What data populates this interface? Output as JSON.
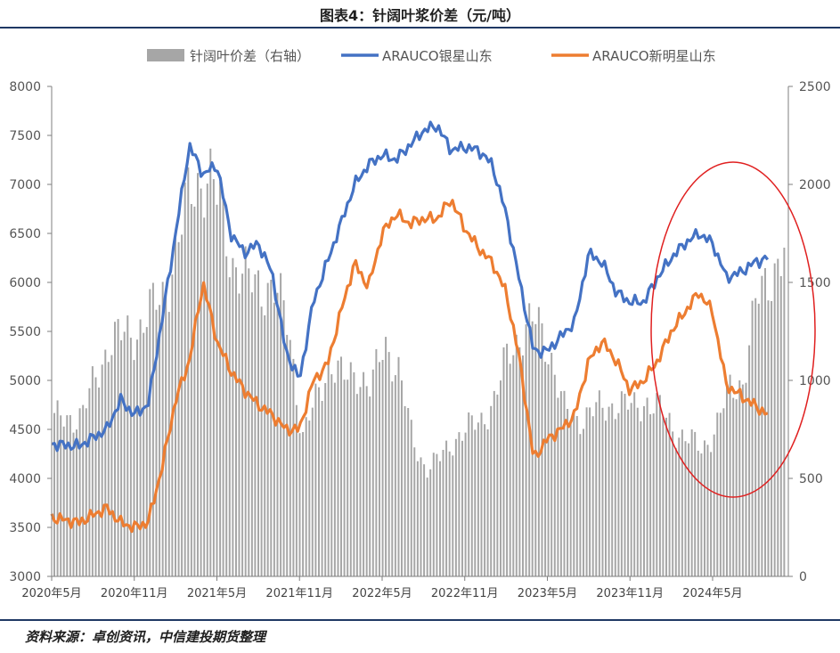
{
  "header": {
    "title": "图表4：针阔叶浆价差（元/吨）"
  },
  "footer": {
    "source": "资料来源：卓创资讯，中信建投期货整理"
  },
  "chart_data": {
    "type": "line",
    "x_tick_labels": [
      "2020年5月",
      "2020年11月",
      "2021年5月",
      "2021年11月",
      "2022年5月",
      "2022年11月",
      "2023年5月",
      "2023年11月",
      "2024年5月"
    ],
    "x_range": [
      "2020-05",
      "2024-10"
    ],
    "y_left": {
      "ylim": [
        3000,
        8000
      ],
      "ticks": [
        3000,
        3500,
        4000,
        4500,
        5000,
        5500,
        6000,
        6500,
        7000,
        7500,
        8000
      ]
    },
    "y_right": {
      "ylim": [
        0,
        2500
      ],
      "ticks": [
        0,
        500,
        1000,
        1500,
        2000,
        2500
      ],
      "axis": "右轴"
    },
    "legend_position": "top",
    "grid": false,
    "series": [
      {
        "name": "针阔叶价差（右轴）",
        "render": "bar",
        "axis": "right",
        "color": "#a6a6a6",
        "points": [
          [
            "2020-05",
            800
          ],
          [
            "2020-07",
            820
          ],
          [
            "2020-09",
            1200
          ],
          [
            "2020-11",
            1250
          ],
          [
            "2021-01",
            1450
          ],
          [
            "2021-02",
            1700
          ],
          [
            "2021-03",
            2000
          ],
          [
            "2021-04",
            2050
          ],
          [
            "2021-05",
            1900
          ],
          [
            "2021-06",
            1600
          ],
          [
            "2021-07",
            1500
          ],
          [
            "2021-08",
            1500
          ],
          [
            "2021-09",
            1450
          ],
          [
            "2021-10",
            1300
          ],
          [
            "2021-11",
            700
          ],
          [
            "2021-12",
            900
          ],
          [
            "2022-01",
            1100
          ],
          [
            "2022-02",
            1000
          ],
          [
            "2022-03",
            1050
          ],
          [
            "2022-04",
            950
          ],
          [
            "2022-05",
            1200
          ],
          [
            "2022-06",
            1050
          ],
          [
            "2022-07",
            700
          ],
          [
            "2022-08",
            550
          ],
          [
            "2022-09",
            600
          ],
          [
            "2022-10",
            700
          ],
          [
            "2022-11",
            750
          ],
          [
            "2022-12",
            800
          ],
          [
            "2023-01",
            900
          ],
          [
            "2023-02",
            1150
          ],
          [
            "2023-03",
            1250
          ],
          [
            "2023-04",
            1300
          ],
          [
            "2023-05",
            1150
          ],
          [
            "2023-06",
            850
          ],
          [
            "2023-07",
            800
          ],
          [
            "2023-08",
            850
          ],
          [
            "2023-09",
            850
          ],
          [
            "2023-10",
            900
          ],
          [
            "2023-11",
            850
          ],
          [
            "2023-12",
            900
          ],
          [
            "2024-01",
            850
          ],
          [
            "2024-02",
            750
          ],
          [
            "2024-03",
            700
          ],
          [
            "2024-04",
            650
          ],
          [
            "2024-05",
            750
          ],
          [
            "2024-06",
            950
          ],
          [
            "2024-07",
            1000
          ],
          [
            "2024-08",
            1400
          ],
          [
            "2024-09",
            1550
          ],
          [
            "2024-10",
            1650
          ]
        ]
      },
      {
        "name": "ARAUCO银星山东",
        "render": "line",
        "axis": "left",
        "color": "#4472c4",
        "points": [
          [
            "2020-05",
            4350
          ],
          [
            "2020-07",
            4330
          ],
          [
            "2020-09",
            4500
          ],
          [
            "2020-10",
            4800
          ],
          [
            "2020-11",
            4650
          ],
          [
            "2020-12",
            4750
          ],
          [
            "2021-01",
            5600
          ],
          [
            "2021-02",
            6500
          ],
          [
            "2021-03",
            7400
          ],
          [
            "2021-04",
            7100
          ],
          [
            "2021-05",
            7200
          ],
          [
            "2021-06",
            6500
          ],
          [
            "2021-07",
            6300
          ],
          [
            "2021-08",
            6400
          ],
          [
            "2021-09",
            6100
          ],
          [
            "2021-10",
            5300
          ],
          [
            "2021-11",
            5000
          ],
          [
            "2021-12",
            5800
          ],
          [
            "2022-01",
            6200
          ],
          [
            "2022-02",
            6600
          ],
          [
            "2022-03",
            7000
          ],
          [
            "2022-04",
            7200
          ],
          [
            "2022-05",
            7300
          ],
          [
            "2022-06",
            7250
          ],
          [
            "2022-07",
            7400
          ],
          [
            "2022-08",
            7550
          ],
          [
            "2022-09",
            7600
          ],
          [
            "2022-10",
            7350
          ],
          [
            "2022-11",
            7380
          ],
          [
            "2022-12",
            7350
          ],
          [
            "2023-01",
            7200
          ],
          [
            "2023-02",
            6700
          ],
          [
            "2023-03",
            6000
          ],
          [
            "2023-04",
            5300
          ],
          [
            "2023-05",
            5300
          ],
          [
            "2023-06",
            5450
          ],
          [
            "2023-07",
            5600
          ],
          [
            "2023-08",
            6300
          ],
          [
            "2023-09",
            6200
          ],
          [
            "2023-10",
            5900
          ],
          [
            "2023-11",
            5800
          ],
          [
            "2023-12",
            5800
          ],
          [
            "2024-01",
            6050
          ],
          [
            "2024-02",
            6250
          ],
          [
            "2024-03",
            6400
          ],
          [
            "2024-04",
            6500
          ],
          [
            "2024-05",
            6400
          ],
          [
            "2024-06",
            6050
          ],
          [
            "2024-07",
            6100
          ],
          [
            "2024-08",
            6200
          ],
          [
            "2024-09",
            6250
          ]
        ]
      },
      {
        "name": "ARAUCO新明星山东",
        "render": "line",
        "axis": "left",
        "color": "#ed7d31",
        "points": [
          [
            "2020-05",
            3600
          ],
          [
            "2020-07",
            3550
          ],
          [
            "2020-09",
            3700
          ],
          [
            "2020-10",
            3550
          ],
          [
            "2020-11",
            3500
          ],
          [
            "2020-12",
            3550
          ],
          [
            "2021-01",
            4100
          ],
          [
            "2021-02",
            4800
          ],
          [
            "2021-03",
            5200
          ],
          [
            "2021-04",
            6000
          ],
          [
            "2021-05",
            5400
          ],
          [
            "2021-06",
            5100
          ],
          [
            "2021-07",
            4900
          ],
          [
            "2021-08",
            4750
          ],
          [
            "2021-09",
            4650
          ],
          [
            "2021-10",
            4500
          ],
          [
            "2021-11",
            4500
          ],
          [
            "2021-12",
            5000
          ],
          [
            "2022-01",
            5150
          ],
          [
            "2022-02",
            5700
          ],
          [
            "2022-03",
            6200
          ],
          [
            "2022-04",
            5950
          ],
          [
            "2022-05",
            6500
          ],
          [
            "2022-06",
            6700
          ],
          [
            "2022-07",
            6600
          ],
          [
            "2022-08",
            6650
          ],
          [
            "2022-09",
            6650
          ],
          [
            "2022-10",
            6850
          ],
          [
            "2022-11",
            6550
          ],
          [
            "2022-12",
            6350
          ],
          [
            "2023-01",
            6200
          ],
          [
            "2023-02",
            5900
          ],
          [
            "2023-03",
            5200
          ],
          [
            "2023-04",
            4200
          ],
          [
            "2023-05",
            4400
          ],
          [
            "2023-06",
            4500
          ],
          [
            "2023-07",
            4650
          ],
          [
            "2023-08",
            5200
          ],
          [
            "2023-09",
            5400
          ],
          [
            "2023-10",
            5200
          ],
          [
            "2023-11",
            4900
          ],
          [
            "2023-12",
            5000
          ],
          [
            "2024-01",
            5200
          ],
          [
            "2024-02",
            5500
          ],
          [
            "2024-03",
            5700
          ],
          [
            "2024-04",
            5900
          ],
          [
            "2024-05",
            5700
          ],
          [
            "2024-06",
            4950
          ],
          [
            "2024-07",
            4850
          ],
          [
            "2024-08",
            4750
          ],
          [
            "2024-09",
            4650
          ]
        ]
      }
    ]
  }
}
